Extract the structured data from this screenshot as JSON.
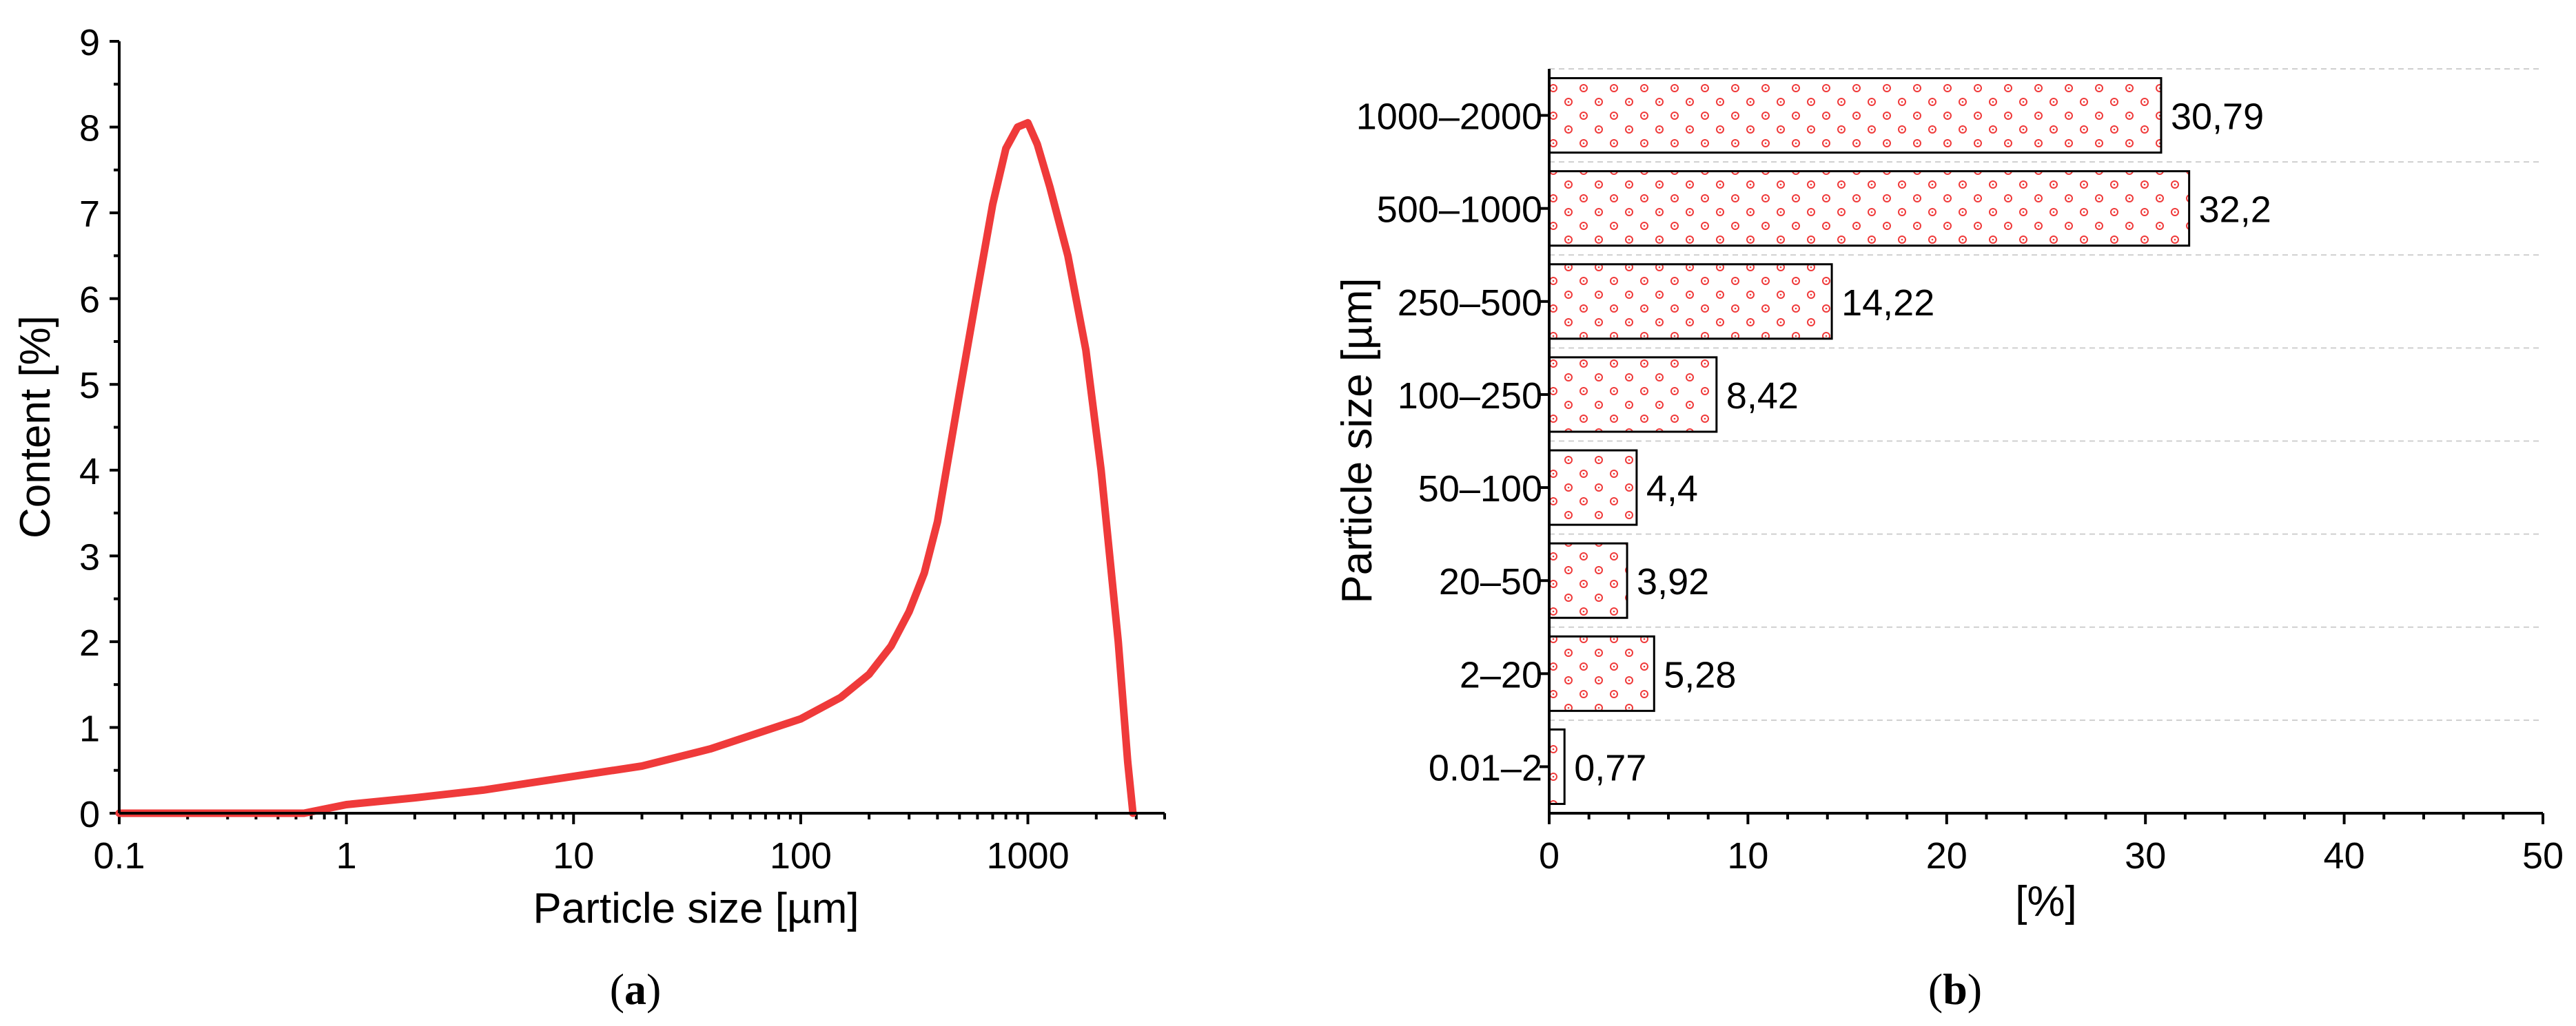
{
  "chart_data": [
    {
      "type": "line",
      "panel_label": "a",
      "xlabel": "Particle size [µm]",
      "ylabel": "Content [%]",
      "xscale": "log",
      "xlim": [
        0.1,
        4000
      ],
      "ylim": [
        0,
        9
      ],
      "x_tick_values": [
        0.1,
        1,
        10,
        100,
        1000
      ],
      "x_tick_labels": [
        "0.1",
        "1",
        "10",
        "100",
        "1000"
      ],
      "y_tick_values": [
        0,
        1,
        2,
        3,
        4,
        5,
        6,
        7,
        8,
        9
      ],
      "y_tick_labels": [
        "0",
        "1",
        "2",
        "3",
        "4",
        "5",
        "6",
        "7",
        "8",
        "9"
      ],
      "series": [
        {
          "name": "Content",
          "color": "#ef3a3a",
          "x": [
            0.1,
            0.3,
            0.65,
            1,
            2,
            4,
            10,
            20,
            40,
            100,
            150,
            200,
            250,
            300,
            350,
            400,
            500,
            600,
            700,
            800,
            900,
            1000,
            1100,
            1250,
            1500,
            1800,
            2100,
            2500,
            2750,
            2900
          ],
          "y": [
            0,
            0,
            0,
            0.1,
            0.18,
            0.27,
            0.43,
            0.55,
            0.75,
            1.1,
            1.35,
            1.62,
            1.95,
            2.35,
            2.8,
            3.4,
            4.9,
            6.1,
            7.1,
            7.75,
            8.0,
            8.05,
            7.8,
            7.3,
            6.5,
            5.4,
            4.0,
            2.0,
            0.6,
            0
          ]
        }
      ]
    },
    {
      "type": "bar",
      "orientation": "horizontal",
      "panel_label": "b",
      "xlabel": "[%]",
      "ylabel": "Particle size [µm]",
      "xlim": [
        0,
        50
      ],
      "x_tick_values": [
        0,
        10,
        20,
        30,
        40,
        50
      ],
      "x_tick_labels": [
        "0",
        "10",
        "20",
        "30",
        "40",
        "50"
      ],
      "categories": [
        "0.01–2",
        "2–20",
        "20–50",
        "50–100",
        "100–250",
        "250–500",
        "500–1000",
        "1000–2000"
      ],
      "values": [
        0.77,
        5.28,
        3.92,
        4.4,
        8.42,
        14.22,
        32.2,
        30.79
      ],
      "value_labels": [
        "0,77",
        "5,28",
        "3,92",
        "4,4",
        "8,42",
        "14,22",
        "32,2",
        "30,79"
      ],
      "fill_pattern_color": "#ef3a3a"
    }
  ]
}
